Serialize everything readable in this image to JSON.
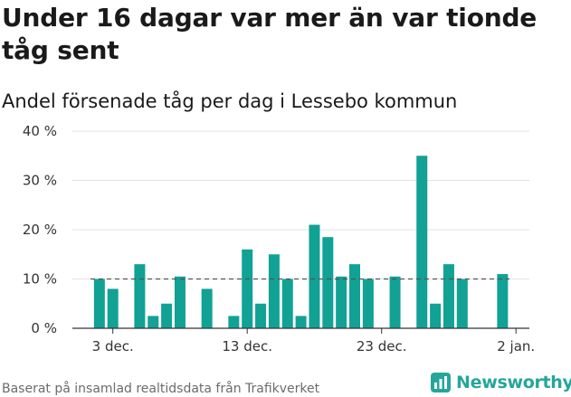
{
  "header": {
    "title": "Under 16 dagar var mer än var tionde tåg sent",
    "subtitle": "Andel försenade tåg per dag i Lessebo kommun"
  },
  "footer": {
    "source": "Baserat på insamlad realtidsdata från Trafikverket",
    "brand": "Newsworthy"
  },
  "colors": {
    "bar": "#12a195",
    "reference_line": "#555555",
    "grid": "#e3e3e3",
    "axis": "#333333",
    "brand": "#26a69a"
  },
  "icons": {
    "brand_logo": "newsworthy-logo-icon"
  },
  "chart_data": {
    "type": "bar",
    "x_type": "date",
    "x_start": "2023-12-01",
    "x_end": "2024-01-02",
    "x_ticks": [
      {
        "date": "2023-12-03",
        "label": "3 dec."
      },
      {
        "date": "2023-12-13",
        "label": "13 dec."
      },
      {
        "date": "2023-12-23",
        "label": "23 dec."
      },
      {
        "date": "2024-01-02",
        "label": "2 jan."
      }
    ],
    "y_ticks": [
      {
        "value": 0,
        "label": "0 %"
      },
      {
        "value": 10,
        "label": "10 %"
      },
      {
        "value": 20,
        "label": "20 %"
      },
      {
        "value": 30,
        "label": "30 %"
      },
      {
        "value": 40,
        "label": "40 %"
      }
    ],
    "ylim": [
      0,
      40
    ],
    "reference_line": 10,
    "grid": true,
    "dates": [
      "2023-12-02",
      "2023-12-03",
      "2023-12-05",
      "2023-12-06",
      "2023-12-07",
      "2023-12-08",
      "2023-12-10",
      "2023-12-12",
      "2023-12-13",
      "2023-12-14",
      "2023-12-15",
      "2023-12-16",
      "2023-12-17",
      "2023-12-18",
      "2023-12-19",
      "2023-12-20",
      "2023-12-21",
      "2023-12-22",
      "2023-12-24",
      "2023-12-26",
      "2023-12-27",
      "2023-12-28",
      "2023-12-29",
      "2024-01-01"
    ],
    "values": [
      10,
      8,
      13,
      2.5,
      5,
      10.5,
      8,
      2.5,
      16,
      5,
      15,
      10,
      2.5,
      21,
      18.5,
      10.5,
      13,
      10,
      10.5,
      35,
      5,
      13,
      10,
      11
    ]
  }
}
